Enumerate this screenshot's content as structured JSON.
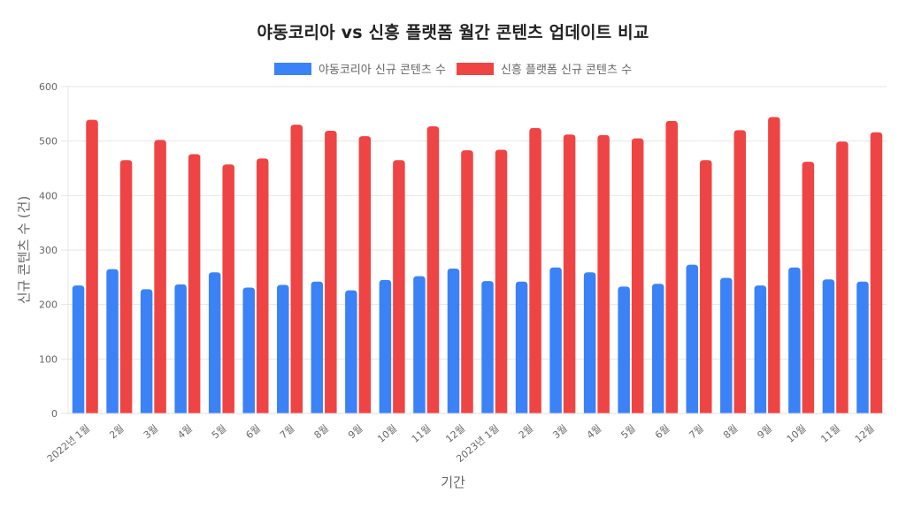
{
  "chart_data": {
    "type": "bar",
    "title": "야동코리아 vs 신흥 플랫폼 월간 콘텐츠 업데이트 비교",
    "xlabel": "기간",
    "ylabel": "신규 콘텐츠 수 (건)",
    "ylim": [
      0,
      600
    ],
    "yticks": [
      0,
      100,
      200,
      300,
      400,
      500,
      600
    ],
    "grid": true,
    "legend_position": "top",
    "categories": [
      "2022년 1월",
      "2월",
      "3월",
      "4월",
      "5월",
      "6월",
      "7월",
      "8월",
      "9월",
      "10월",
      "11월",
      "12월",
      "2023년 1월",
      "2월",
      "3월",
      "4월",
      "5월",
      "6월",
      "7월",
      "8월",
      "9월",
      "10월",
      "11월",
      "12월"
    ],
    "series": [
      {
        "name": "야동코리아 신규 콘텐츠 수",
        "color": "#3b82f6",
        "values": [
          235,
          265,
          228,
          237,
          259,
          231,
          236,
          242,
          226,
          245,
          252,
          266,
          243,
          242,
          268,
          259,
          233,
          238,
          273,
          249,
          235,
          268,
          246,
          242
        ]
      },
      {
        "name": "신흥 플랫폼 신규 콘텐츠 수",
        "color": "#ef4444",
        "values": [
          539,
          465,
          502,
          476,
          457,
          468,
          530,
          519,
          509,
          465,
          527,
          483,
          484,
          524,
          512,
          511,
          505,
          537,
          465,
          520,
          544,
          462,
          499,
          516
        ]
      }
    ]
  }
}
